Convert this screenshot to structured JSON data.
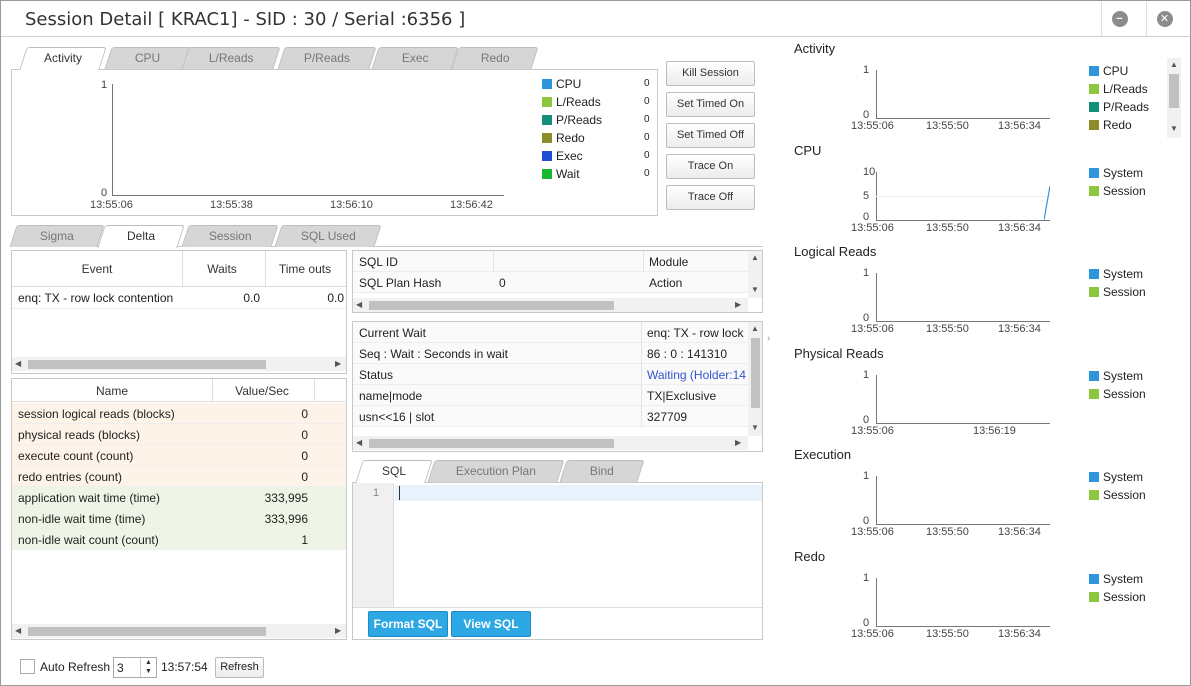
{
  "window": {
    "title": "Session Detail [ KRAC1] - SID : 30 / Serial :6356 ]"
  },
  "top_tabs": [
    "Activity",
    "CPU",
    "L/Reads",
    "P/Reads",
    "Exec",
    "Redo"
  ],
  "activity_chart": {
    "y_max": "1",
    "y_min": "0",
    "x_ticks": [
      "13:55:06",
      "13:55:38",
      "13:56:10",
      "13:56:42"
    ],
    "legend": [
      {
        "name": "CPU",
        "value": "0",
        "color": "#2f95dc"
      },
      {
        "name": "L/Reads",
        "value": "0",
        "color": "#8dc63f"
      },
      {
        "name": "P/Reads",
        "value": "0",
        "color": "#14907a"
      },
      {
        "name": "Redo",
        "value": "0",
        "color": "#8c8c2a"
      },
      {
        "name": "Exec",
        "value": "0",
        "color": "#1f4fd6"
      },
      {
        "name": "Wait",
        "value": "0",
        "color": "#17b82b"
      }
    ]
  },
  "actions": [
    "Kill Session",
    "Set Timed On",
    "Set Timed Off",
    "Trace On",
    "Trace Off"
  ],
  "mid_tabs": [
    "Sigma",
    "Delta",
    "Session",
    "SQL Used"
  ],
  "event_table": {
    "headers": [
      "Event",
      "Waits",
      "Time outs"
    ],
    "rows": [
      [
        "enq: TX - row lock contention",
        "0.0",
        "0.0"
      ]
    ]
  },
  "stat_table": {
    "headers": [
      "Name",
      "Value/Sec"
    ],
    "rows": [
      [
        "session logical reads (blocks)",
        "0"
      ],
      [
        "physical reads (blocks)",
        "0"
      ],
      [
        "execute count (count)",
        "0"
      ],
      [
        "redo entries (count)",
        "0"
      ],
      [
        "application wait time (time)",
        "333,995"
      ],
      [
        "non-idle wait time (time)",
        "333,996"
      ],
      [
        "non-idle wait count (count)",
        "1"
      ]
    ]
  },
  "sql_info": {
    "rows": [
      [
        "SQL ID",
        "",
        "Module"
      ],
      [
        "SQL Plan Hash",
        "0",
        "Action"
      ]
    ]
  },
  "wait_info": {
    "rows": [
      [
        "Current Wait",
        "enq: TX - row lock"
      ],
      [
        "Seq : Wait : Seconds in wait",
        "86 : 0 : 141310"
      ],
      [
        "Status",
        "Waiting (Holder:14"
      ],
      [
        "name|mode",
        "TX|Exclusive"
      ],
      [
        "usn<<16 | slot",
        "327709"
      ]
    ]
  },
  "sql_tabs": [
    "SQL",
    "Execution Plan",
    "Bind"
  ],
  "editor": {
    "line": "1"
  },
  "sql_buttons": [
    "Format SQL",
    "View SQL"
  ],
  "footer": {
    "auto_refresh": "Auto Refresh",
    "interval": "3",
    "time": "13:57:54",
    "refresh": "Refresh"
  },
  "right_charts": [
    {
      "title": "Activity",
      "y_max": "1",
      "y_min": "0",
      "x_ticks": [
        "13:55:06",
        "13:55:50",
        "13:56:34"
      ],
      "legend": [
        {
          "name": "CPU",
          "color": "#2f95dc"
        },
        {
          "name": "L/Reads",
          "color": "#8dc63f"
        },
        {
          "name": "P/Reads",
          "color": "#14907a"
        },
        {
          "name": "Redo",
          "color": "#8c8c2a"
        }
      ]
    },
    {
      "title": "CPU",
      "y_max": "10",
      "y_mid": "5",
      "y_min": "0",
      "x_ticks": [
        "13:55:06",
        "13:55:50",
        "13:56:34"
      ],
      "legend": [
        {
          "name": "System",
          "color": "#2f95dc"
        },
        {
          "name": "Session",
          "color": "#8dc63f"
        }
      ]
    },
    {
      "title": "Logical Reads",
      "y_max": "1",
      "y_min": "0",
      "x_ticks": [
        "13:55:06",
        "13:55:50",
        "13:56:34"
      ],
      "legend": [
        {
          "name": "System",
          "color": "#2f95dc"
        },
        {
          "name": "Session",
          "color": "#8dc63f"
        }
      ]
    },
    {
      "title": "Physical Reads",
      "y_max": "1",
      "y_min": "0",
      "x_ticks": [
        "13:55:06",
        "13:56:19"
      ],
      "legend": [
        {
          "name": "System",
          "color": "#2f95dc"
        },
        {
          "name": "Session",
          "color": "#8dc63f"
        }
      ]
    },
    {
      "title": "Execution",
      "y_max": "1",
      "y_min": "0",
      "x_ticks": [
        "13:55:06",
        "13:55:50",
        "13:56:34"
      ],
      "legend": [
        {
          "name": "System",
          "color": "#2f95dc"
        },
        {
          "name": "Session",
          "color": "#8dc63f"
        }
      ]
    },
    {
      "title": "Redo",
      "y_max": "1",
      "y_min": "0",
      "x_ticks": [
        "13:55:06",
        "13:55:50",
        "13:56:34"
      ],
      "legend": [
        {
          "name": "System",
          "color": "#2f95dc"
        },
        {
          "name": "Session",
          "color": "#8dc63f"
        }
      ]
    }
  ]
}
